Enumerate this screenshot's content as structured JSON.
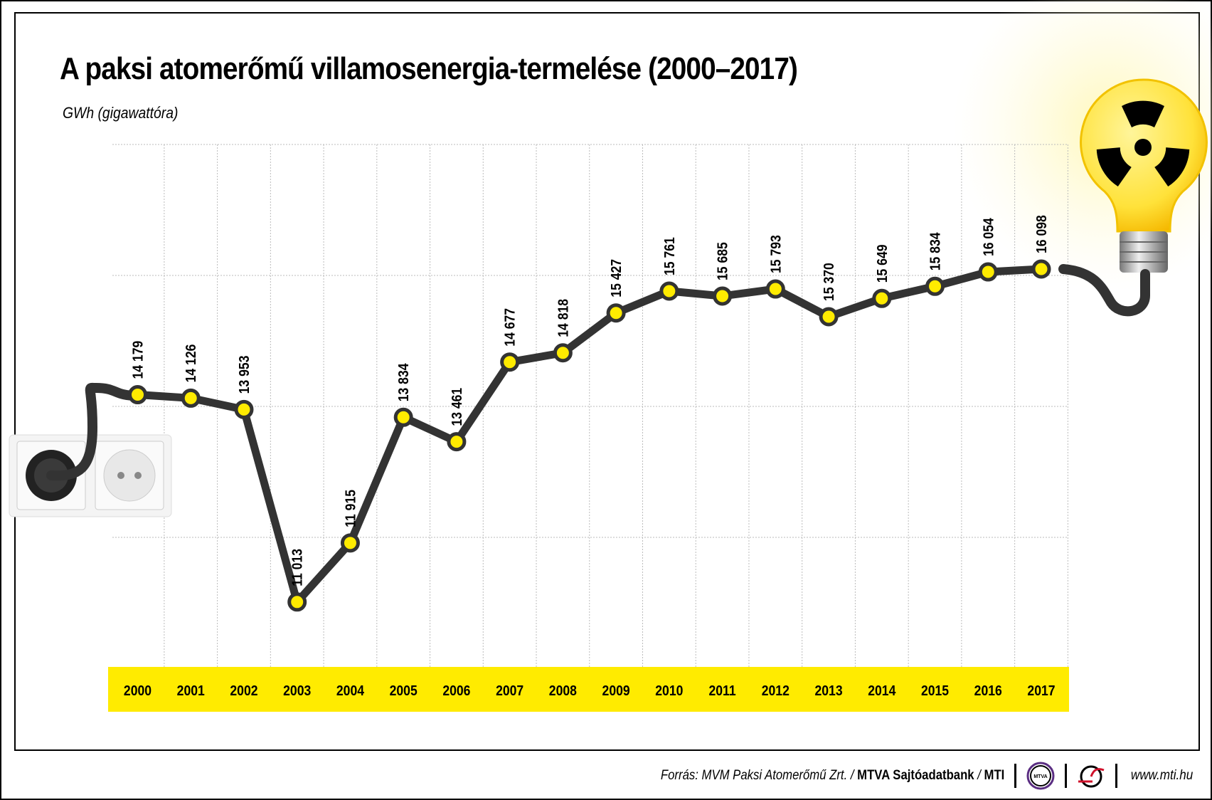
{
  "title": "A paksi atomerőmű villamosenergia-termelése (2000–2017)",
  "subtitle": "GWh (gigawattóra)",
  "footer": {
    "source_prefix": "Forrás: MVM Paksi Atomerőmű Zrt. / ",
    "source_bold1": "MTVA Sajtóadatbank",
    "source_sep": " / ",
    "source_bold2": "MTI",
    "logo1_text": "MTVA",
    "url": "www.mti.hu"
  },
  "colors": {
    "accent_yellow": "#ffeb00",
    "line": "#333333",
    "marker_fill": "#ffeb00"
  },
  "icons": [
    "power-socket-icon",
    "plug-icon",
    "light-bulb-icon",
    "radiation-symbol-icon",
    "mtva-logo",
    "mti-logo"
  ],
  "chart_data": {
    "type": "line",
    "title": "A paksi atomerőmű villamosenergia-termelése (2000–2017)",
    "ylabel": "GWh (gigawattóra)",
    "categories": [
      "2000",
      "2001",
      "2002",
      "2003",
      "2004",
      "2005",
      "2006",
      "2007",
      "2008",
      "2009",
      "2010",
      "2011",
      "2012",
      "2013",
      "2014",
      "2015",
      "2016",
      "2017"
    ],
    "values": [
      14179,
      14126,
      13953,
      11013,
      11915,
      13834,
      13461,
      14677,
      14818,
      15427,
      15761,
      15685,
      15793,
      15370,
      15649,
      15834,
      16054,
      16098
    ],
    "labels": [
      "14 179",
      "14 126",
      "13 953",
      "11 013",
      "11 915",
      "13 834",
      "13 461",
      "14 677",
      "14 818",
      "15 427",
      "15 761",
      "15 685",
      "15 793",
      "15 370",
      "15 649",
      "15 834",
      "16 054",
      "16 098"
    ],
    "ylim": [
      10000,
      18000
    ],
    "gridlines_y": [
      12000,
      14000,
      16000,
      18000
    ],
    "grid": true,
    "y_tick_labels_shown": false
  }
}
